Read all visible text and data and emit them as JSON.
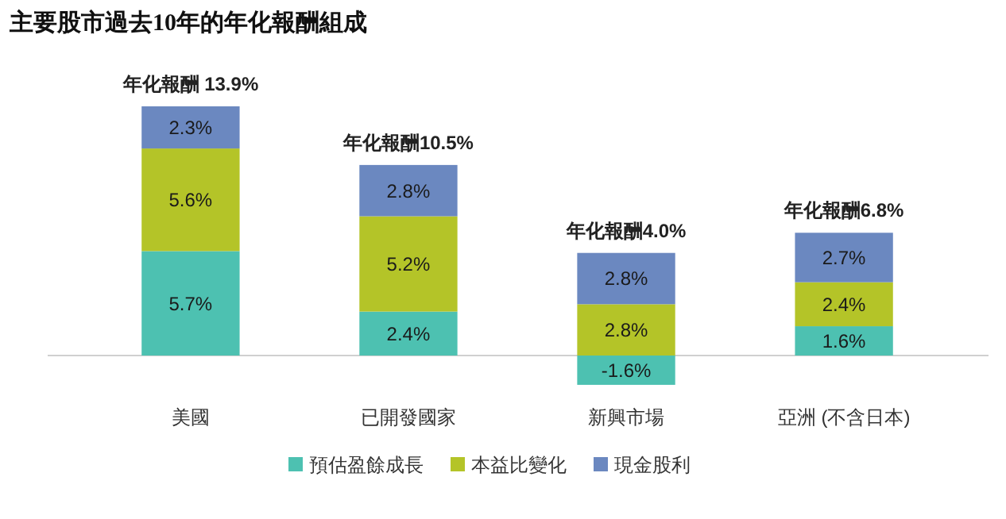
{
  "chart_data": {
    "type": "bar",
    "title": "主要股市過去10年的年化報酬組成",
    "stacked": true,
    "legend": "bottom",
    "categories": [
      "美國",
      "已開發國家",
      "新興市場",
      "亞洲 (不含日本)"
    ],
    "series": [
      {
        "name": "預估盈餘成長",
        "color": "#4dc1b1",
        "values": [
          5.7,
          2.4,
          -1.6,
          1.6
        ],
        "value_labels": [
          "5.7%",
          "2.4%",
          "-1.6%",
          "1.6%"
        ]
      },
      {
        "name": "本益比變化",
        "color": "#b4c428",
        "values": [
          5.6,
          5.2,
          2.8,
          2.4
        ],
        "value_labels": [
          "5.6%",
          "5.2%",
          "2.8%",
          "2.4%"
        ]
      },
      {
        "name": "現金股利",
        "color": "#6b88c0",
        "values": [
          2.3,
          2.8,
          2.8,
          2.7
        ],
        "value_labels": [
          "2.3%",
          "2.8%",
          "2.8%",
          "2.7%"
        ]
      }
    ],
    "totals": [
      "年化報酬 13.9%",
      "年化報酬10.5%",
      "年化報酬4.0%",
      "年化報酬6.8%"
    ]
  }
}
